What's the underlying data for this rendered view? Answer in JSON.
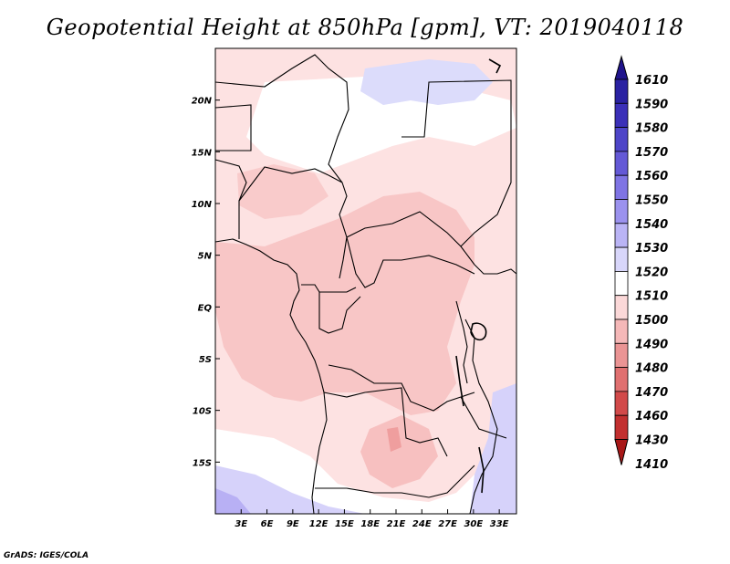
{
  "title": "Geopotential Height at 850hPa [gpm], VT: 2019040118",
  "credit": "GrADS: IGES/COLA",
  "map": {
    "lon_labels": [
      "3E",
      "6E",
      "9E",
      "12E",
      "15E",
      "18E",
      "21E",
      "24E",
      "27E",
      "30E",
      "33E"
    ],
    "lat_labels": [
      "20N",
      "15N",
      "10N",
      "5N",
      "EQ",
      "5S",
      "10S",
      "15S"
    ],
    "lon_values": [
      3,
      6,
      9,
      12,
      15,
      18,
      21,
      24,
      27,
      30,
      33
    ],
    "lat_values": [
      20,
      15,
      10,
      5,
      0,
      -5,
      -10,
      -15
    ],
    "lon_range": [
      0,
      35
    ],
    "lat_range": [
      -20,
      25
    ]
  },
  "colorbar": {
    "labels": [
      "1610",
      "1590",
      "1580",
      "1570",
      "1560",
      "1550",
      "1540",
      "1530",
      "1520",
      "1510",
      "1500",
      "1490",
      "1480",
      "1470",
      "1460",
      "1430",
      "1410"
    ],
    "colors": [
      "#20148c",
      "#2a22a2",
      "#3b30b8",
      "#4e45c8",
      "#6459d6",
      "#7f74e4",
      "#9b92ee",
      "#bab4f5",
      "#d8d6fa",
      "#ffffff",
      "#fbd8d8",
      "#f5b8b8",
      "#ea9494",
      "#e07070",
      "#d24a4a",
      "#c23030",
      "#a81818"
    ]
  }
}
